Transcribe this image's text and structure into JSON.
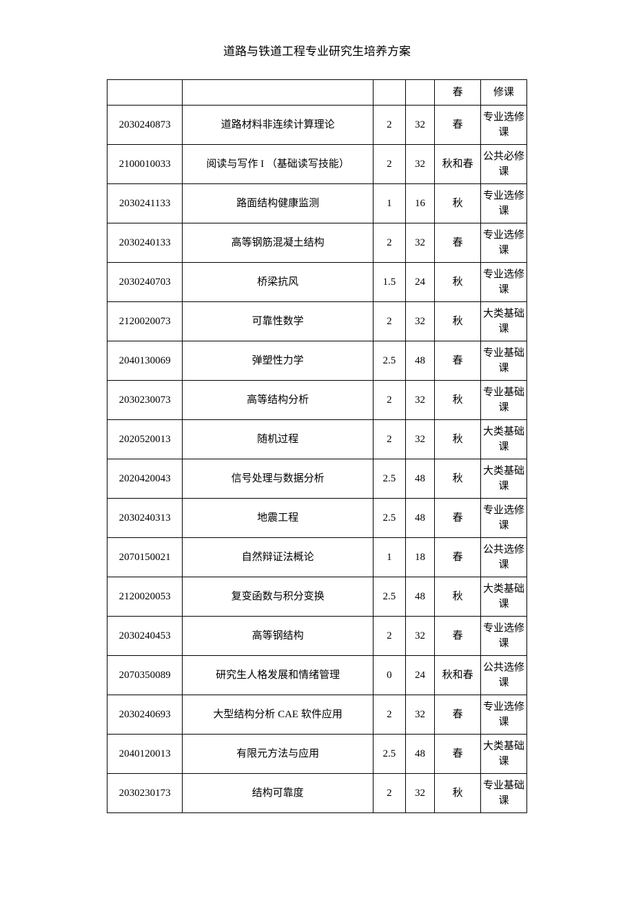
{
  "title": "道路与铁道工程专业研究生培养方案",
  "columns": {
    "code_width": 98,
    "name_width": 248,
    "credit_width": 42,
    "hours_width": 38,
    "term_width": 60,
    "type_width": 60
  },
  "header": {
    "code": "",
    "name": "",
    "credit": "",
    "hours": "",
    "term": "春",
    "type": "修课"
  },
  "rows": [
    {
      "code": "2030240873",
      "name": "道路材料非连续计算理论",
      "credit": "2",
      "hours": "32",
      "term": "春",
      "type": "专业选修课"
    },
    {
      "code": "2100010033",
      "name": "阅读与写作 I （基础读写技能）",
      "credit": "2",
      "hours": "32",
      "term": "秋和春",
      "type": "公共必修课"
    },
    {
      "code": "2030241133",
      "name": "路面结构健康监测",
      "credit": "1",
      "hours": "16",
      "term": "秋",
      "type": "专业选修课"
    },
    {
      "code": "2030240133",
      "name": "高等钢筋混凝土结构",
      "credit": "2",
      "hours": "32",
      "term": "春",
      "type": "专业选修课"
    },
    {
      "code": "2030240703",
      "name": "桥梁抗风",
      "credit": "1.5",
      "hours": "24",
      "term": "秋",
      "type": "专业选修课"
    },
    {
      "code": "2120020073",
      "name": "可靠性数学",
      "credit": "2",
      "hours": "32",
      "term": "秋",
      "type": "大类基础课"
    },
    {
      "code": "2040130069",
      "name": "弹塑性力学",
      "credit": "2.5",
      "hours": "48",
      "term": "春",
      "type": "专业基础课"
    },
    {
      "code": "2030230073",
      "name": "高等结构分析",
      "credit": "2",
      "hours": "32",
      "term": "秋",
      "type": "专业基础课"
    },
    {
      "code": "2020520013",
      "name": "随机过程",
      "credit": "2",
      "hours": "32",
      "term": "秋",
      "type": "大类基础课"
    },
    {
      "code": "2020420043",
      "name": "信号处理与数据分析",
      "credit": "2.5",
      "hours": "48",
      "term": "秋",
      "type": "大类基础课"
    },
    {
      "code": "2030240313",
      "name": "地震工程",
      "credit": "2.5",
      "hours": "48",
      "term": "春",
      "type": "专业选修课"
    },
    {
      "code": "2070150021",
      "name": "自然辩证法概论",
      "credit": "1",
      "hours": "18",
      "term": "春",
      "type": "公共选修课"
    },
    {
      "code": "2120020053",
      "name": "复变函数与积分变换",
      "credit": "2.5",
      "hours": "48",
      "term": "秋",
      "type": "大类基础课"
    },
    {
      "code": "2030240453",
      "name": "高等钢结构",
      "credit": "2",
      "hours": "32",
      "term": "春",
      "type": "专业选修课"
    },
    {
      "code": "2070350089",
      "name": "研究生人格发展和情绪管理",
      "credit": "0",
      "hours": "24",
      "term": "秋和春",
      "type": "公共选修课"
    },
    {
      "code": "2030240693",
      "name": "大型结构分析 CAE 软件应用",
      "credit": "2",
      "hours": "32",
      "term": "春",
      "type": "专业选修课"
    },
    {
      "code": "2040120013",
      "name": "有限元方法与应用",
      "credit": "2.5",
      "hours": "48",
      "term": "春",
      "type": "大类基础课"
    },
    {
      "code": "2030230173",
      "name": "结构可靠度",
      "credit": "2",
      "hours": "32",
      "term": "秋",
      "type": "专业基础课"
    }
  ]
}
